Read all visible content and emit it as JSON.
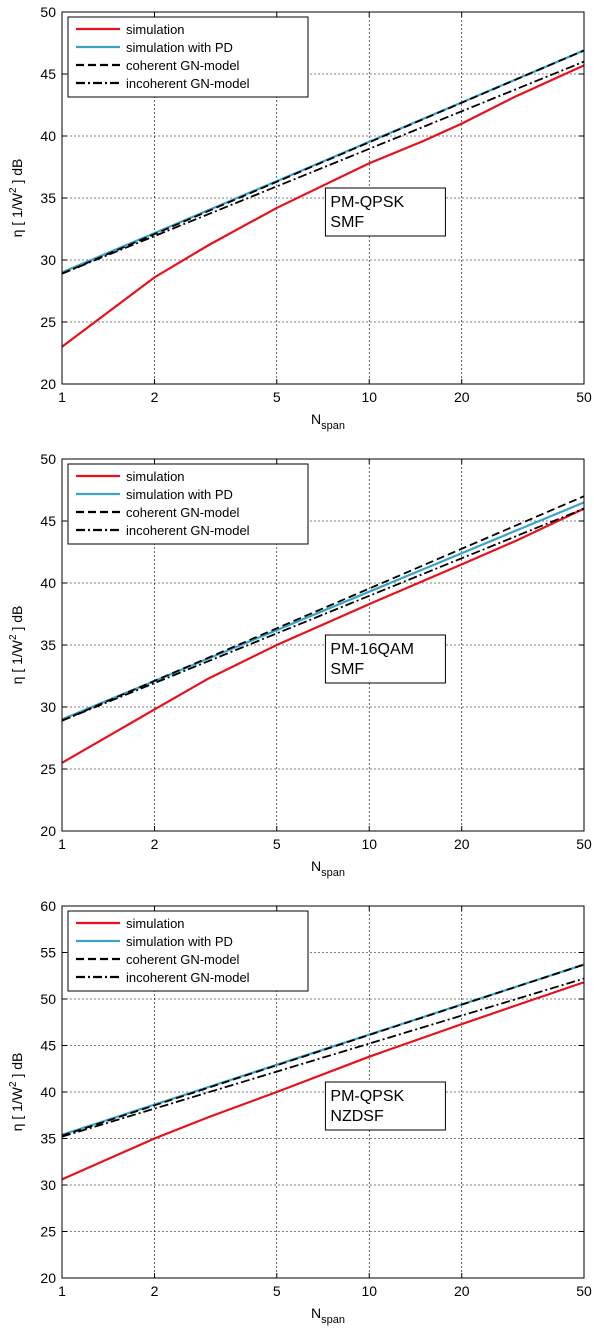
{
  "colors": {
    "simulation": "#e8101a",
    "simulation_pd": "#3aa4c8",
    "gn": "#000000"
  },
  "chart_data": [
    {
      "type": "line",
      "x_scale": "log",
      "xlim": [
        1,
        50
      ],
      "ylim": [
        20,
        50
      ],
      "xticks": [
        1,
        2,
        5,
        10,
        20,
        50
      ],
      "xtick_labels": [
        "1",
        "2",
        "5",
        "10",
        "20",
        "50"
      ],
      "yticks": [
        20,
        25,
        30,
        35,
        40,
        45,
        50
      ],
      "ytick_labels": [
        "20",
        "25",
        "30",
        "35",
        "40",
        "45",
        "50"
      ],
      "xlabel": "N",
      "xlabel_sub": "span",
      "ylabel": "η  [ 1/W",
      "ylabel_sup": "2",
      "ylabel_tail": " ] dB",
      "grid": true,
      "legend_position": "top-left",
      "annotation": [
        "PM-QPSK",
        "SMF"
      ],
      "series": [
        {
          "name": "simulation",
          "color": "simulation",
          "dash": "solid",
          "x": [
            1,
            2,
            3,
            5,
            10,
            15,
            20,
            30,
            50
          ],
          "values": [
            23.0,
            28.6,
            31.2,
            34.2,
            37.8,
            39.6,
            41.0,
            43.2,
            45.7
          ]
        },
        {
          "name": "simulation with PD",
          "color": "simulation_pd",
          "dash": "solid",
          "x": [
            1,
            50
          ],
          "values": [
            29.0,
            46.9
          ]
        },
        {
          "name": "coherent GN-model",
          "color": "gn",
          "dash": "dashed",
          "x": [
            1,
            50
          ],
          "values": [
            28.9,
            46.9
          ]
        },
        {
          "name": "incoherent GN-model",
          "color": "gn",
          "dash": "dashdot",
          "x": [
            1,
            50
          ],
          "values": [
            28.9,
            46.0
          ]
        }
      ]
    },
    {
      "type": "line",
      "x_scale": "log",
      "xlim": [
        1,
        50
      ],
      "ylim": [
        20,
        50
      ],
      "xticks": [
        1,
        2,
        5,
        10,
        20,
        50
      ],
      "xtick_labels": [
        "1",
        "2",
        "5",
        "10",
        "20",
        "50"
      ],
      "yticks": [
        20,
        25,
        30,
        35,
        40,
        45,
        50
      ],
      "ytick_labels": [
        "20",
        "25",
        "30",
        "35",
        "40",
        "45",
        "50"
      ],
      "xlabel": "N",
      "xlabel_sub": "span",
      "ylabel": "η  [ 1/W",
      "ylabel_sup": "2",
      "ylabel_tail": " ] dB",
      "grid": true,
      "legend_position": "top-left",
      "annotation": [
        "PM-16QAM",
        "SMF"
      ],
      "series": [
        {
          "name": "simulation",
          "color": "simulation",
          "dash": "solid",
          "x": [
            1,
            2,
            3,
            5,
            10,
            20,
            30,
            50
          ],
          "values": [
            25.5,
            29.8,
            32.3,
            35.0,
            38.3,
            41.5,
            43.4,
            46.0
          ]
        },
        {
          "name": "simulation with PD",
          "color": "simulation_pd",
          "dash": "solid",
          "x": [
            1,
            50
          ],
          "values": [
            29.0,
            46.5
          ]
        },
        {
          "name": "coherent GN-model",
          "color": "gn",
          "dash": "dashed",
          "x": [
            1,
            50
          ],
          "values": [
            28.9,
            47.0
          ]
        },
        {
          "name": "incoherent GN-model",
          "color": "gn",
          "dash": "dashdot",
          "x": [
            1,
            50
          ],
          "values": [
            28.9,
            46.0
          ]
        }
      ]
    },
    {
      "type": "line",
      "x_scale": "log",
      "xlim": [
        1,
        50
      ],
      "ylim": [
        20,
        60
      ],
      "xticks": [
        1,
        2,
        5,
        10,
        20,
        50
      ],
      "xtick_labels": [
        "1",
        "2",
        "5",
        "10",
        "20",
        "50"
      ],
      "yticks": [
        20,
        25,
        30,
        35,
        40,
        45,
        50,
        55,
        60
      ],
      "ytick_labels": [
        "20",
        "25",
        "30",
        "35",
        "40",
        "45",
        "50",
        "55",
        "60"
      ],
      "xlabel": "N",
      "xlabel_sub": "span",
      "ylabel": "η  [ 1/W",
      "ylabel_sup": "2",
      "ylabel_tail": " ] dB",
      "grid": true,
      "legend_position": "top-left",
      "annotation": [
        "PM-QPSK",
        "NZDSF"
      ],
      "series": [
        {
          "name": "simulation",
          "color": "simulation",
          "dash": "solid",
          "x": [
            1,
            2,
            3,
            5,
            10,
            20,
            30,
            50
          ],
          "values": [
            30.6,
            35.0,
            37.3,
            40.0,
            43.8,
            47.3,
            49.3,
            51.8
          ]
        },
        {
          "name": "simulation with PD",
          "color": "simulation_pd",
          "dash": "solid",
          "x": [
            1,
            50
          ],
          "values": [
            35.4,
            53.7
          ]
        },
        {
          "name": "coherent GN-model",
          "color": "gn",
          "dash": "dashed",
          "x": [
            1,
            50
          ],
          "values": [
            35.3,
            53.7
          ]
        },
        {
          "name": "incoherent GN-model",
          "color": "gn",
          "dash": "dashdot",
          "x": [
            1,
            50
          ],
          "values": [
            35.2,
            52.2
          ]
        }
      ]
    }
  ]
}
